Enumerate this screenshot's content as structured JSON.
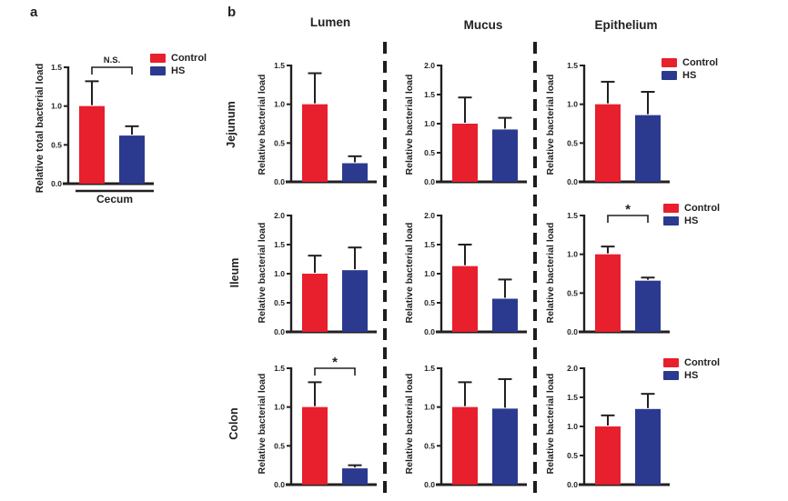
{
  "colors": {
    "control": "#E81F2D",
    "hs": "#2B3A8F",
    "axis": "#231f20"
  },
  "panel_a": {
    "label": "a",
    "ylabel": "Relative total bacterial load",
    "xlabel": "Cecum"
  },
  "panel_b": {
    "label": "b",
    "column_headers": [
      "Lumen",
      "Mucus",
      "Epithelium"
    ],
    "row_labels": [
      "Jejunum",
      "Ileum",
      "Colon"
    ],
    "ylabel": "Relative bacterial load"
  },
  "legend": {
    "control": "Control",
    "hs": "HS"
  },
  "chart_data": [
    {
      "id": "cecum",
      "type": "bar",
      "panel": "a",
      "title": "",
      "xlabel": "Cecum",
      "ylabel": "Relative total bacterial load",
      "categories": [
        "Control",
        "HS"
      ],
      "values": [
        1.0,
        0.62
      ],
      "errors": [
        0.32,
        0.12
      ],
      "ylim": [
        0,
        1.5
      ],
      "yticks": [
        0,
        0.5,
        1.0,
        1.5
      ],
      "significance": "N.S.",
      "legend": true,
      "legend_position": "top-right"
    },
    {
      "id": "jejunum-lumen",
      "type": "bar",
      "panel": "b",
      "row": "Jejunum",
      "column": "Lumen",
      "ylabel": "Relative bacterial load",
      "categories": [
        "Control",
        "HS"
      ],
      "values": [
        1.0,
        0.24
      ],
      "errors": [
        0.4,
        0.09
      ],
      "ylim": [
        0,
        1.5
      ],
      "yticks": [
        0,
        0.5,
        1.0,
        1.5
      ],
      "significance": null,
      "legend": false
    },
    {
      "id": "jejunum-mucus",
      "type": "bar",
      "panel": "b",
      "row": "Jejunum",
      "column": "Mucus",
      "ylabel": "Relative bacterial load",
      "categories": [
        "Control",
        "HS"
      ],
      "values": [
        1.0,
        0.9
      ],
      "errors": [
        0.45,
        0.2
      ],
      "ylim": [
        0,
        2.0
      ],
      "yticks": [
        0,
        0.5,
        1.0,
        1.5,
        2.0
      ],
      "significance": null,
      "legend": false
    },
    {
      "id": "jejunum-epithelium",
      "type": "bar",
      "panel": "b",
      "row": "Jejunum",
      "column": "Epithelium",
      "ylabel": "Relative bacterial load",
      "categories": [
        "Control",
        "HS"
      ],
      "values": [
        1.0,
        0.86
      ],
      "errors": [
        0.29,
        0.3
      ],
      "ylim": [
        0,
        1.5
      ],
      "yticks": [
        0,
        0.5,
        1.0,
        1.5
      ],
      "significance": null,
      "legend": true,
      "legend_position": "top-right"
    },
    {
      "id": "ileum-lumen",
      "type": "bar",
      "panel": "b",
      "row": "Ileum",
      "column": "Lumen",
      "ylabel": "Relative bacterial load",
      "categories": [
        "Control",
        "HS"
      ],
      "values": [
        1.0,
        1.06
      ],
      "errors": [
        0.31,
        0.39
      ],
      "ylim": [
        0,
        2.0
      ],
      "yticks": [
        0,
        0.5,
        1.0,
        1.5,
        2.0
      ],
      "significance": null,
      "legend": false
    },
    {
      "id": "ileum-mucus",
      "type": "bar",
      "panel": "b",
      "row": "Ileum",
      "column": "Mucus",
      "ylabel": "Relative bacterial load",
      "categories": [
        "Control",
        "HS"
      ],
      "values": [
        1.13,
        0.57
      ],
      "errors": [
        0.37,
        0.33
      ],
      "ylim": [
        0,
        2.0
      ],
      "yticks": [
        0,
        0.5,
        1.0,
        1.5,
        2.0
      ],
      "significance": null,
      "legend": false
    },
    {
      "id": "ileum-epithelium",
      "type": "bar",
      "panel": "b",
      "row": "Ileum",
      "column": "Epithelium",
      "ylabel": "Relative bacterial load",
      "categories": [
        "Control",
        "HS"
      ],
      "values": [
        1.0,
        0.66
      ],
      "errors": [
        0.1,
        0.04
      ],
      "ylim": [
        0,
        1.5
      ],
      "yticks": [
        0,
        0.5,
        1.0,
        1.5
      ],
      "significance": "*",
      "legend": true,
      "legend_position": "top-right"
    },
    {
      "id": "colon-lumen",
      "type": "bar",
      "panel": "b",
      "row": "Colon",
      "column": "Lumen",
      "ylabel": "Relative bacterial load",
      "categories": [
        "Control",
        "HS"
      ],
      "values": [
        1.0,
        0.21
      ],
      "errors": [
        0.32,
        0.04
      ],
      "ylim": [
        0,
        1.5
      ],
      "yticks": [
        0,
        0.5,
        1.0,
        1.5
      ],
      "significance": "*",
      "legend": false
    },
    {
      "id": "colon-mucus",
      "type": "bar",
      "panel": "b",
      "row": "Colon",
      "column": "Mucus",
      "ylabel": "Relative bacterial load",
      "categories": [
        "Control",
        "HS"
      ],
      "values": [
        1.0,
        0.98
      ],
      "errors": [
        0.32,
        0.38
      ],
      "ylim": [
        0,
        1.5
      ],
      "yticks": [
        0,
        0.5,
        1.0,
        1.5
      ],
      "significance": null,
      "legend": false
    },
    {
      "id": "colon-epithelium",
      "type": "bar",
      "panel": "b",
      "row": "Colon",
      "column": "Epithelium",
      "ylabel": "Relative bacterial load",
      "categories": [
        "Control",
        "HS"
      ],
      "values": [
        1.0,
        1.3
      ],
      "errors": [
        0.19,
        0.26
      ],
      "ylim": [
        0,
        2.0
      ],
      "yticks": [
        0,
        0.5,
        1.0,
        1.5,
        2.0
      ],
      "significance": null,
      "legend": true,
      "legend_position": "top-right"
    }
  ]
}
